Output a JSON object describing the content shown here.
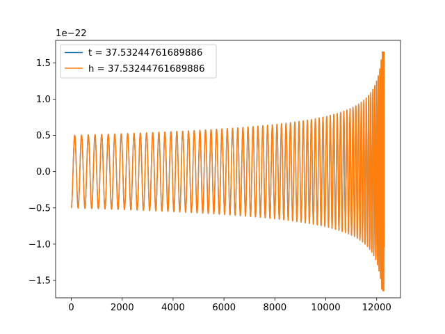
{
  "chart_data": {
    "type": "line",
    "title": "",
    "xlabel": "",
    "ylabel": "",
    "y_offset_label": "1e−22",
    "xlim": [
      -616,
      12936
    ],
    "ylim": [
      -1.74,
      1.81
    ],
    "y_scale_factor": 1e-22,
    "x_ticks": [
      0,
      2000,
      4000,
      6000,
      8000,
      10000,
      12000
    ],
    "x_tick_labels": [
      "0",
      "2000",
      "4000",
      "6000",
      "8000",
      "10000",
      "12000"
    ],
    "y_ticks": [
      -1.5,
      -1.0,
      -0.5,
      0.0,
      0.5,
      1.0,
      1.5
    ],
    "y_tick_labels": [
      "−1.5",
      "−1.0",
      "−0.5",
      "0.0",
      "0.5",
      "1.0",
      "1.5"
    ],
    "grid": false,
    "legend_position": "top-left",
    "series": [
      {
        "name": "t = 37.53244761689886",
        "color": "#1f77b4",
        "signal": "chirp",
        "x_range": [
          0,
          12300
        ],
        "amplitude_start": 0.5,
        "amplitude_peak": 1.65,
        "cycles_in_first_1000": 3.7,
        "cycles_near_end_per_100": 3.3
      },
      {
        "name": "h = 37.53244761689886",
        "color": "#ff7f0e",
        "signal": "chirp",
        "x_range": [
          0,
          12300
        ],
        "amplitude_start": 0.5,
        "amplitude_peak": 1.65,
        "cycles_in_first_1000": 3.7,
        "cycles_near_end_per_100": 3.3
      }
    ]
  }
}
